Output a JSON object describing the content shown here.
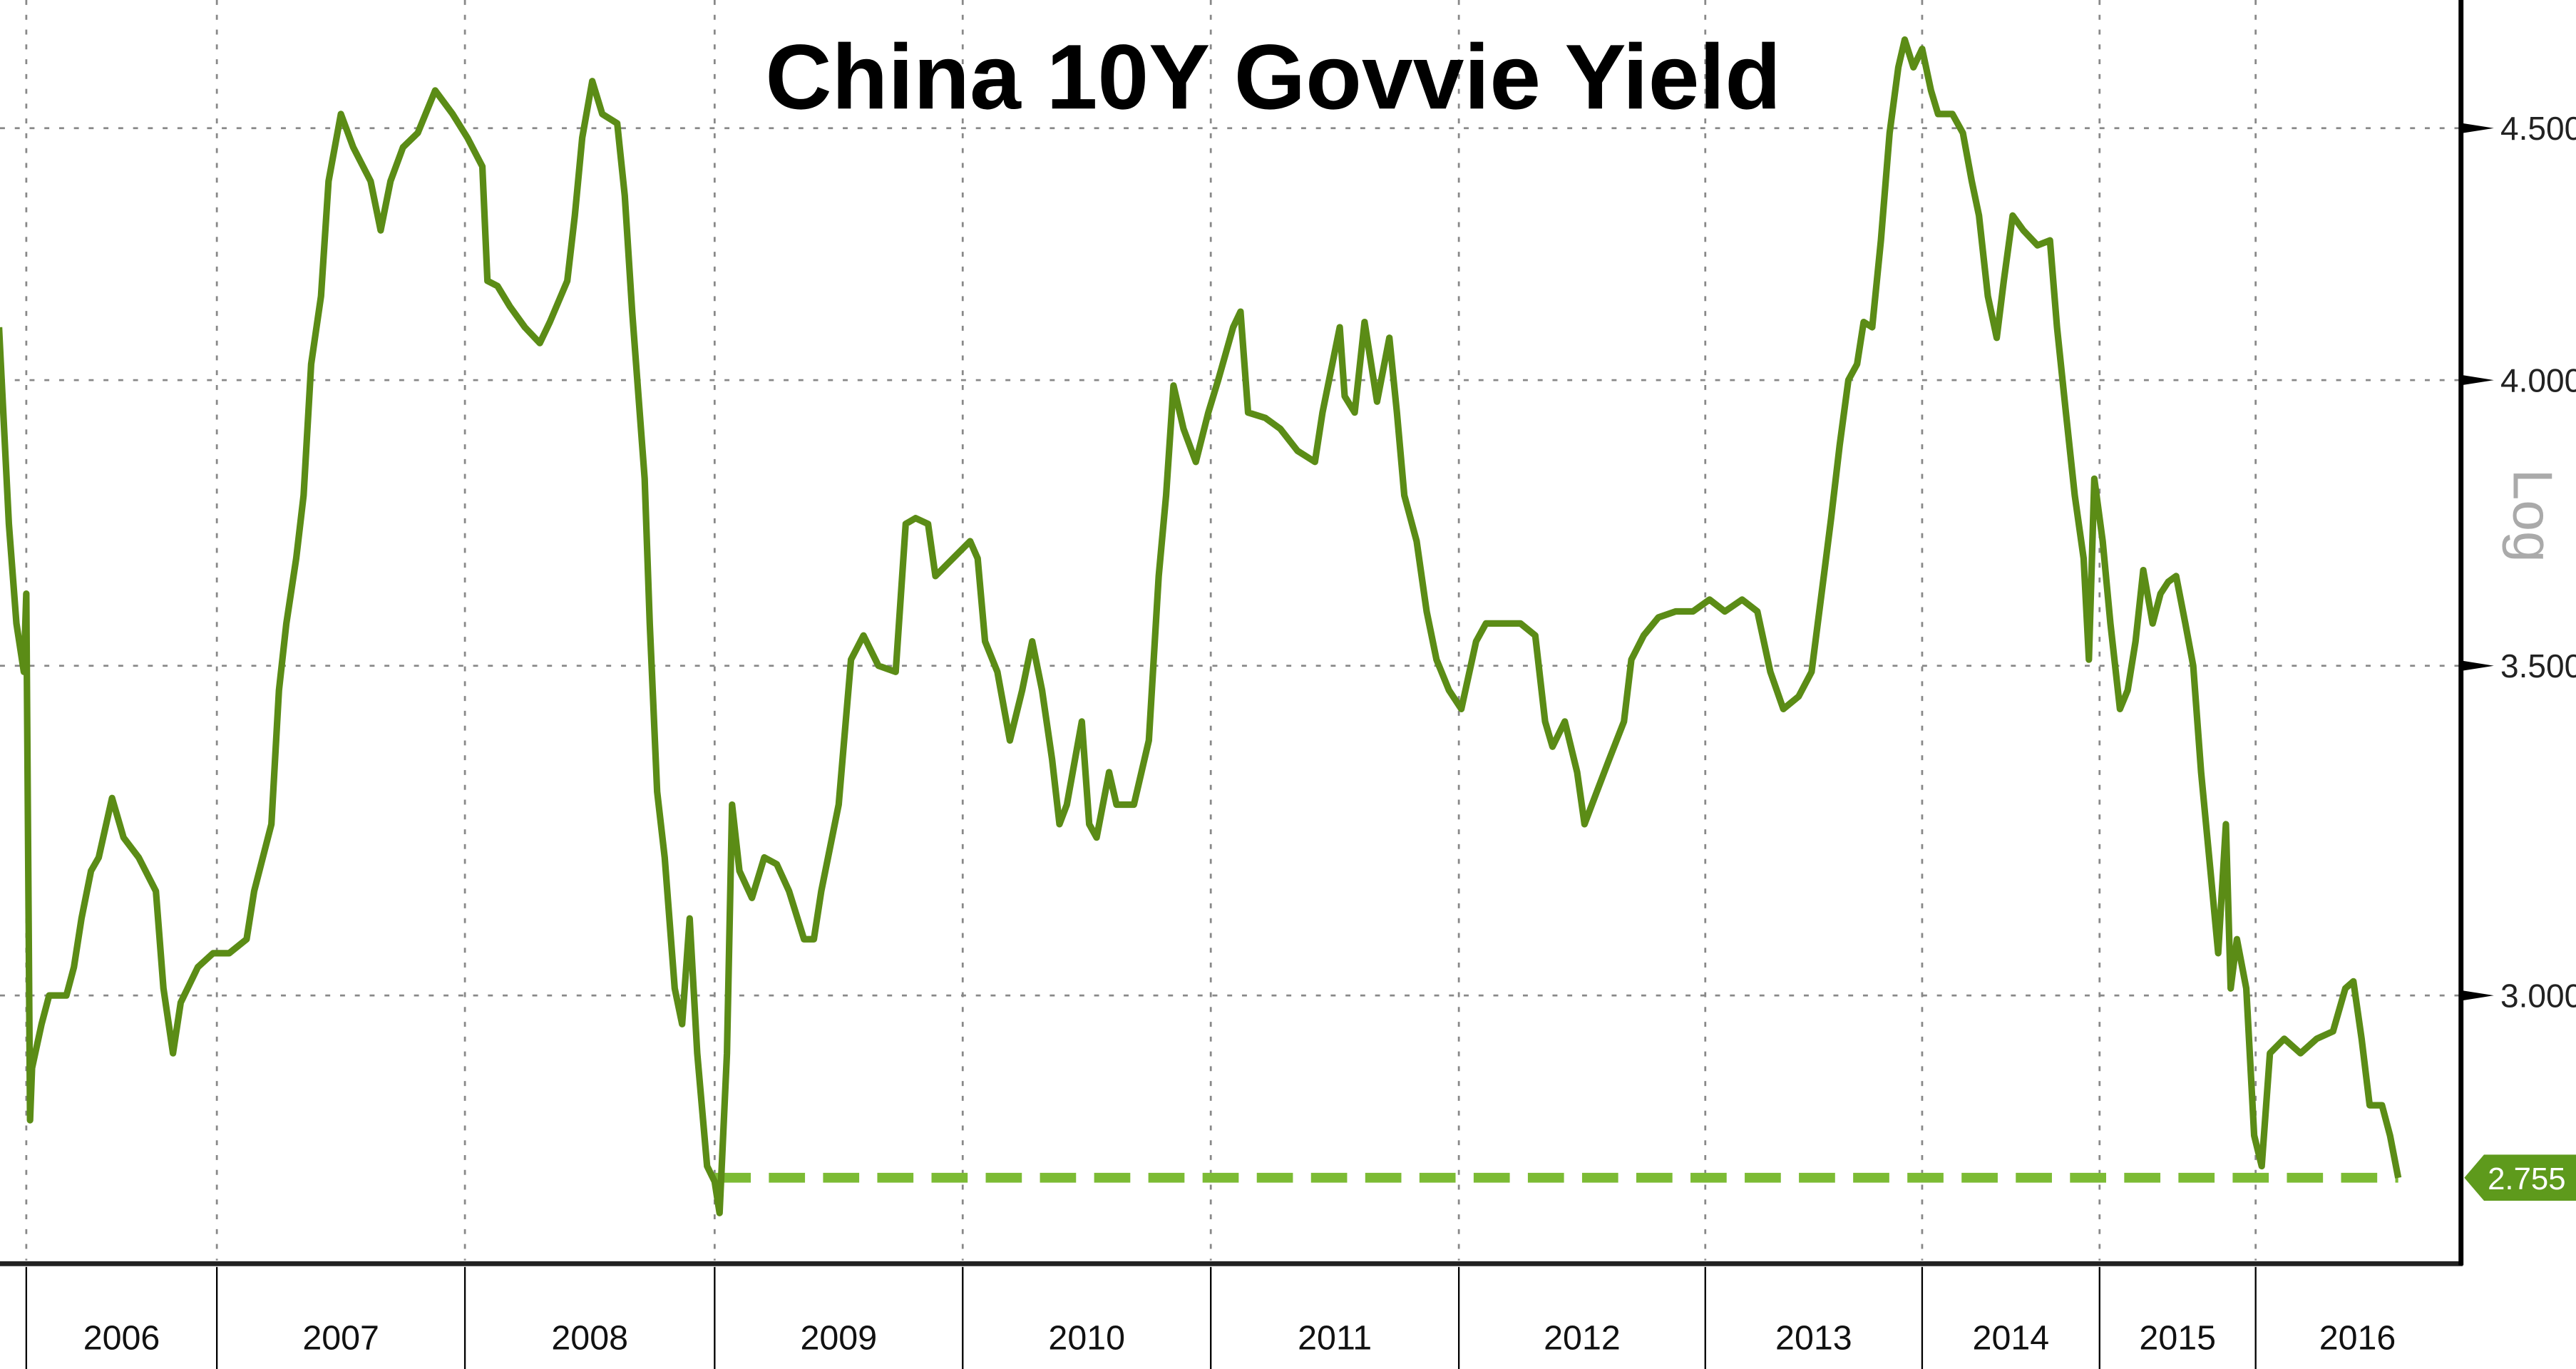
{
  "chart_data": {
    "type": "line",
    "title": "China 10Y Govvie Yield",
    "xlabel": "",
    "ylabel": "",
    "y_scale": "log",
    "y_scale_label": "Log",
    "ylim": [
      2.68,
      4.72
    ],
    "y_axis_position": "right",
    "y_ticks": [
      "4.500",
      "4.000",
      "3.500",
      "3.000"
    ],
    "y_tick_values": [
      4.5,
      4.0,
      3.5,
      3.0
    ],
    "x_tick_labels": [
      "2006",
      "2007",
      "2008",
      "2009",
      "2010",
      "2011",
      "2012",
      "2013",
      "2014",
      "2015",
      "2016"
    ],
    "grid": true,
    "line_color": "#5b8c16",
    "last_value": {
      "label": "2.755",
      "value": 2.755,
      "color": "#5e9a1c"
    },
    "reference_line": {
      "value": 2.755,
      "x_start": 2009.0,
      "x_end": 2016.7,
      "style": "dashed",
      "color": "#7cbb34"
    },
    "series": [
      {
        "values": [
          [
            2005.89,
            4.1
          ],
          [
            2005.93,
            3.74
          ],
          [
            2005.96,
            3.57
          ],
          [
            2005.99,
            3.49
          ],
          [
            2006.0,
            3.62
          ],
          [
            2006.02,
            2.83
          ],
          [
            2006.03,
            2.9
          ],
          [
            2006.08,
            2.96
          ],
          [
            2006.12,
            3.0
          ],
          [
            2006.21,
            3.0
          ],
          [
            2006.25,
            3.04
          ],
          [
            2006.29,
            3.11
          ],
          [
            2006.34,
            3.18
          ],
          [
            2006.38,
            3.2
          ],
          [
            2006.45,
            3.29
          ],
          [
            2006.51,
            3.23
          ],
          [
            2006.59,
            3.2
          ],
          [
            2006.68,
            3.15
          ],
          [
            2006.72,
            3.01
          ],
          [
            2006.77,
            2.92
          ],
          [
            2006.81,
            2.99
          ],
          [
            2006.9,
            3.04
          ],
          [
            2006.98,
            3.06
          ],
          [
            2007.05,
            3.06
          ],
          [
            2007.12,
            3.08
          ],
          [
            2007.15,
            3.15
          ],
          [
            2007.22,
            3.25
          ],
          [
            2007.25,
            3.46
          ],
          [
            2007.28,
            3.57
          ],
          [
            2007.32,
            3.68
          ],
          [
            2007.35,
            3.79
          ],
          [
            2007.38,
            4.03
          ],
          [
            2007.42,
            4.16
          ],
          [
            2007.45,
            4.39
          ],
          [
            2007.5,
            4.53
          ],
          [
            2007.55,
            4.46
          ],
          [
            2007.62,
            4.39
          ],
          [
            2007.66,
            4.29
          ],
          [
            2007.7,
            4.39
          ],
          [
            2007.75,
            4.46
          ],
          [
            2007.81,
            4.49
          ],
          [
            2007.88,
            4.58
          ],
          [
            2007.95,
            4.53
          ],
          [
            2008.01,
            4.48
          ],
          [
            2008.07,
            4.42
          ],
          [
            2008.09,
            4.19
          ],
          [
            2008.13,
            4.18
          ],
          [
            2008.18,
            4.14
          ],
          [
            2008.24,
            4.1
          ],
          [
            2008.3,
            4.07
          ],
          [
            2008.34,
            4.11
          ],
          [
            2008.41,
            4.19
          ],
          [
            2008.44,
            4.32
          ],
          [
            2008.47,
            4.48
          ],
          [
            2008.51,
            4.6
          ],
          [
            2008.55,
            4.53
          ],
          [
            2008.61,
            4.51
          ],
          [
            2008.64,
            4.36
          ],
          [
            2008.67,
            4.13
          ],
          [
            2008.72,
            3.82
          ],
          [
            2008.74,
            3.57
          ],
          [
            2008.77,
            3.3
          ],
          [
            2008.8,
            3.2
          ],
          [
            2008.84,
            3.01
          ],
          [
            2008.87,
            2.96
          ],
          [
            2008.9,
            3.11
          ],
          [
            2008.93,
            2.92
          ],
          [
            2008.97,
            2.77
          ],
          [
            2009.0,
            2.75
          ],
          [
            2009.02,
            2.71
          ],
          [
            2009.05,
            2.92
          ],
          [
            2009.07,
            3.28
          ],
          [
            2009.1,
            3.18
          ],
          [
            2009.15,
            3.14
          ],
          [
            2009.2,
            3.2
          ],
          [
            2009.25,
            3.19
          ],
          [
            2009.3,
            3.15
          ],
          [
            2009.36,
            3.08
          ],
          [
            2009.4,
            3.08
          ],
          [
            2009.43,
            3.15
          ],
          [
            2009.5,
            3.28
          ],
          [
            2009.55,
            3.51
          ],
          [
            2009.6,
            3.55
          ],
          [
            2009.66,
            3.5
          ],
          [
            2009.73,
            3.49
          ],
          [
            2009.77,
            3.74
          ],
          [
            2009.81,
            3.75
          ],
          [
            2009.86,
            3.74
          ],
          [
            2009.89,
            3.65
          ],
          [
            2009.96,
            3.68
          ],
          [
            2010.03,
            3.71
          ],
          [
            2010.06,
            3.68
          ],
          [
            2010.09,
            3.54
          ],
          [
            2010.14,
            3.49
          ],
          [
            2010.19,
            3.38
          ],
          [
            2010.24,
            3.46
          ],
          [
            2010.28,
            3.54
          ],
          [
            2010.32,
            3.46
          ],
          [
            2010.36,
            3.35
          ],
          [
            2010.39,
            3.25
          ],
          [
            2010.42,
            3.28
          ],
          [
            2010.48,
            3.41
          ],
          [
            2010.51,
            3.25
          ],
          [
            2010.54,
            3.23
          ],
          [
            2010.59,
            3.33
          ],
          [
            2010.62,
            3.28
          ],
          [
            2010.69,
            3.28
          ],
          [
            2010.75,
            3.38
          ],
          [
            2010.79,
            3.65
          ],
          [
            2010.82,
            3.79
          ],
          [
            2010.85,
            3.99
          ],
          [
            2010.89,
            3.91
          ],
          [
            2010.94,
            3.85
          ],
          [
            2010.99,
            3.94
          ],
          [
            2011.03,
            4.0
          ],
          [
            2011.09,
            4.1
          ],
          [
            2011.12,
            4.13
          ],
          [
            2011.15,
            3.94
          ],
          [
            2011.22,
            3.93
          ],
          [
            2011.28,
            3.91
          ],
          [
            2011.35,
            3.87
          ],
          [
            2011.42,
            3.85
          ],
          [
            2011.45,
            3.94
          ],
          [
            2011.52,
            4.1
          ],
          [
            2011.54,
            3.97
          ],
          [
            2011.58,
            3.94
          ],
          [
            2011.62,
            4.11
          ],
          [
            2011.67,
            3.96
          ],
          [
            2011.72,
            4.08
          ],
          [
            2011.75,
            3.94
          ],
          [
            2011.78,
            3.79
          ],
          [
            2011.83,
            3.71
          ],
          [
            2011.87,
            3.59
          ],
          [
            2011.91,
            3.51
          ],
          [
            2011.96,
            3.46
          ],
          [
            2012.01,
            3.43
          ],
          [
            2012.07,
            3.54
          ],
          [
            2012.11,
            3.57
          ],
          [
            2012.18,
            3.57
          ],
          [
            2012.25,
            3.57
          ],
          [
            2012.31,
            3.55
          ],
          [
            2012.35,
            3.41
          ],
          [
            2012.38,
            3.37
          ],
          [
            2012.43,
            3.41
          ],
          [
            2012.48,
            3.33
          ],
          [
            2012.51,
            3.25
          ],
          [
            2012.56,
            3.3
          ],
          [
            2012.61,
            3.35
          ],
          [
            2012.67,
            3.41
          ],
          [
            2012.7,
            3.51
          ],
          [
            2012.75,
            3.55
          ],
          [
            2012.81,
            3.58
          ],
          [
            2012.88,
            3.59
          ],
          [
            2012.95,
            3.59
          ],
          [
            2013.02,
            3.61
          ],
          [
            2013.09,
            3.59
          ],
          [
            2013.17,
            3.61
          ],
          [
            2013.24,
            3.59
          ],
          [
            2013.3,
            3.49
          ],
          [
            2013.36,
            3.43
          ],
          [
            2013.43,
            3.45
          ],
          [
            2013.49,
            3.49
          ],
          [
            2013.55,
            3.66
          ],
          [
            2013.58,
            3.75
          ],
          [
            2013.62,
            3.88
          ],
          [
            2013.66,
            4.0
          ],
          [
            2013.7,
            4.03
          ],
          [
            2013.73,
            4.11
          ],
          [
            2013.77,
            4.1
          ],
          [
            2013.81,
            4.27
          ],
          [
            2013.85,
            4.49
          ],
          [
            2013.89,
            4.63
          ],
          [
            2013.92,
            4.69
          ],
          [
            2013.96,
            4.63
          ],
          [
            2014.0,
            4.67
          ],
          [
            2014.05,
            4.58
          ],
          [
            2014.09,
            4.53
          ],
          [
            2014.17,
            4.53
          ],
          [
            2014.23,
            4.49
          ],
          [
            2014.28,
            4.39
          ],
          [
            2014.32,
            4.32
          ],
          [
            2014.37,
            4.16
          ],
          [
            2014.42,
            4.08
          ],
          [
            2014.46,
            4.19
          ],
          [
            2014.51,
            4.32
          ],
          [
            2014.57,
            4.29
          ],
          [
            2014.65,
            4.26
          ],
          [
            2014.72,
            4.27
          ],
          [
            2014.76,
            4.1
          ],
          [
            2014.81,
            3.94
          ],
          [
            2014.86,
            3.79
          ],
          [
            2014.91,
            3.68
          ],
          [
            2014.94,
            3.51
          ],
          [
            2014.97,
            3.82
          ],
          [
            2015.02,
            3.71
          ],
          [
            2015.07,
            3.57
          ],
          [
            2015.13,
            3.43
          ],
          [
            2015.18,
            3.46
          ],
          [
            2015.23,
            3.54
          ],
          [
            2015.28,
            3.66
          ],
          [
            2015.34,
            3.57
          ],
          [
            2015.39,
            3.62
          ],
          [
            2015.44,
            3.64
          ],
          [
            2015.49,
            3.65
          ],
          [
            2015.55,
            3.57
          ],
          [
            2015.6,
            3.5
          ],
          [
            2015.65,
            3.33
          ],
          [
            2015.71,
            3.18
          ],
          [
            2015.76,
            3.06
          ],
          [
            2015.81,
            3.25
          ],
          [
            2015.84,
            3.01
          ],
          [
            2015.88,
            3.08
          ],
          [
            2015.94,
            3.01
          ],
          [
            2015.99,
            2.81
          ],
          [
            2016.03,
            2.77
          ],
          [
            2016.07,
            2.92
          ],
          [
            2016.14,
            2.94
          ],
          [
            2016.22,
            2.92
          ],
          [
            2016.3,
            2.94
          ],
          [
            2016.38,
            2.95
          ],
          [
            2016.44,
            3.01
          ],
          [
            2016.48,
            3.02
          ],
          [
            2016.52,
            2.94
          ],
          [
            2016.56,
            2.85
          ],
          [
            2016.62,
            2.85
          ],
          [
            2016.66,
            2.81
          ],
          [
            2016.7,
            2.755
          ]
        ]
      }
    ]
  }
}
